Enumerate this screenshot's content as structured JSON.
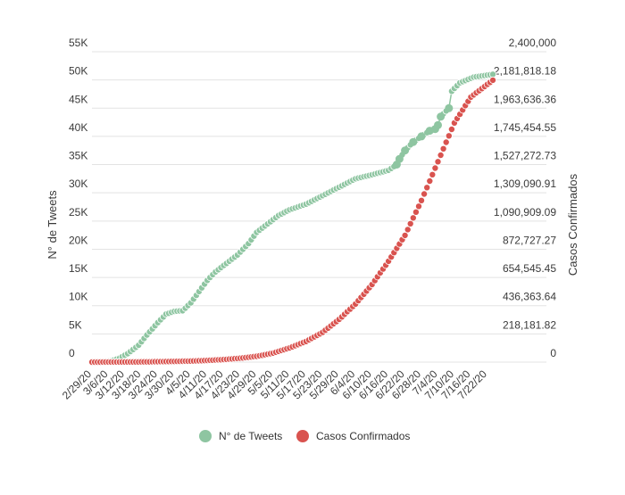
{
  "chart_data": {
    "type": "line",
    "title": "",
    "ylabel": "N° de Tweets",
    "ylabel_right": "Casos Confirmados",
    "ylim": [
      0,
      55000
    ],
    "ylim_right": [
      0,
      2400000
    ],
    "y_ticks": [
      "0",
      "5K",
      "10K",
      "15K",
      "20K",
      "25K",
      "30K",
      "35K",
      "40K",
      "45K",
      "50K",
      "55K"
    ],
    "y_ticks_right": [
      "0",
      "218,181.82",
      "436,363.64",
      "654,545.45",
      "872,727.27",
      "1,090,909.09",
      "1,309,090.91",
      "1,527,272.73",
      "1,745,454.55",
      "1,963,636.36",
      "2,181,818.18",
      "2,400,000"
    ],
    "x_tick_labels": [
      "2/29/20",
      "3/6/20",
      "3/12/20",
      "3/18/20",
      "3/24/20",
      "3/30/20",
      "4/5/20",
      "4/11/20",
      "4/17/20",
      "4/23/20",
      "4/29/20",
      "5/5/20",
      "5/11/20",
      "5/17/20",
      "5/23/20",
      "5/29/20",
      "6/4/20",
      "6/10/20",
      "6/16/20",
      "6/22/20",
      "6/28/20",
      "7/4/20",
      "7/10/20",
      "7/16/20",
      "7/22/20"
    ],
    "x_range": [
      "2/29/20",
      "7/24/20"
    ],
    "grid": "horizontal",
    "legend_position": "bottom",
    "series": [
      {
        "name": "N° de Tweets",
        "axis": "left",
        "color": "#8ec5a1",
        "points": [
          [
            "2/29/20",
            0
          ],
          [
            "3/7/20",
            200
          ],
          [
            "3/10/20",
            700
          ],
          [
            "3/13/20",
            1500
          ],
          [
            "3/17/20",
            3000
          ],
          [
            "3/20/20",
            4800
          ],
          [
            "3/24/20",
            7000
          ],
          [
            "3/27/20",
            8500
          ],
          [
            "3/30/20",
            9000
          ],
          [
            "4/2/20",
            9100
          ],
          [
            "4/5/20",
            10500
          ],
          [
            "4/8/20",
            12500
          ],
          [
            "4/11/20",
            14500
          ],
          [
            "4/14/20",
            16000
          ],
          [
            "4/18/20",
            17500
          ],
          [
            "4/22/20",
            19000
          ],
          [
            "4/26/20",
            21000
          ],
          [
            "4/29/20",
            23000
          ],
          [
            "5/3/20",
            24500
          ],
          [
            "5/7/20",
            26000
          ],
          [
            "5/11/20",
            27000
          ],
          [
            "5/17/20",
            28000
          ],
          [
            "5/23/20",
            29500
          ],
          [
            "5/29/20",
            31000
          ],
          [
            "6/4/20",
            32500
          ],
          [
            "6/10/20",
            33200
          ],
          [
            "6/16/20",
            34000
          ],
          [
            "6/19/20",
            35000
          ],
          [
            "6/20/20",
            36000
          ],
          [
            "6/22/20",
            37500
          ],
          [
            "6/25/20",
            39000
          ],
          [
            "6/28/20",
            40000
          ],
          [
            "7/1/20",
            41000
          ],
          [
            "7/3/20",
            41300
          ],
          [
            "7/4/20",
            42000
          ],
          [
            "7/5/20",
            43500
          ],
          [
            "7/8/20",
            45000
          ],
          [
            "7/9/20",
            48000
          ],
          [
            "7/12/20",
            49500
          ],
          [
            "7/17/20",
            50500
          ],
          [
            "7/24/20",
            51000
          ]
        ]
      },
      {
        "name": "Casos Confirmados",
        "axis": "right",
        "color": "#d9534f",
        "points": [
          [
            "2/29/20",
            0
          ],
          [
            "3/20/20",
            2000
          ],
          [
            "4/5/20",
            8000
          ],
          [
            "4/11/20",
            13000
          ],
          [
            "4/17/20",
            20000
          ],
          [
            "4/23/20",
            30000
          ],
          [
            "4/29/20",
            45000
          ],
          [
            "5/5/20",
            70000
          ],
          [
            "5/11/20",
            110000
          ],
          [
            "5/17/20",
            160000
          ],
          [
            "5/23/20",
            230000
          ],
          [
            "5/29/20",
            330000
          ],
          [
            "6/4/20",
            450000
          ],
          [
            "6/10/20",
            600000
          ],
          [
            "6/16/20",
            780000
          ],
          [
            "6/22/20",
            980000
          ],
          [
            "6/28/20",
            1250000
          ],
          [
            "7/4/20",
            1550000
          ],
          [
            "7/10/20",
            1850000
          ],
          [
            "7/16/20",
            2050000
          ],
          [
            "7/24/20",
            2180000
          ]
        ]
      }
    ]
  }
}
